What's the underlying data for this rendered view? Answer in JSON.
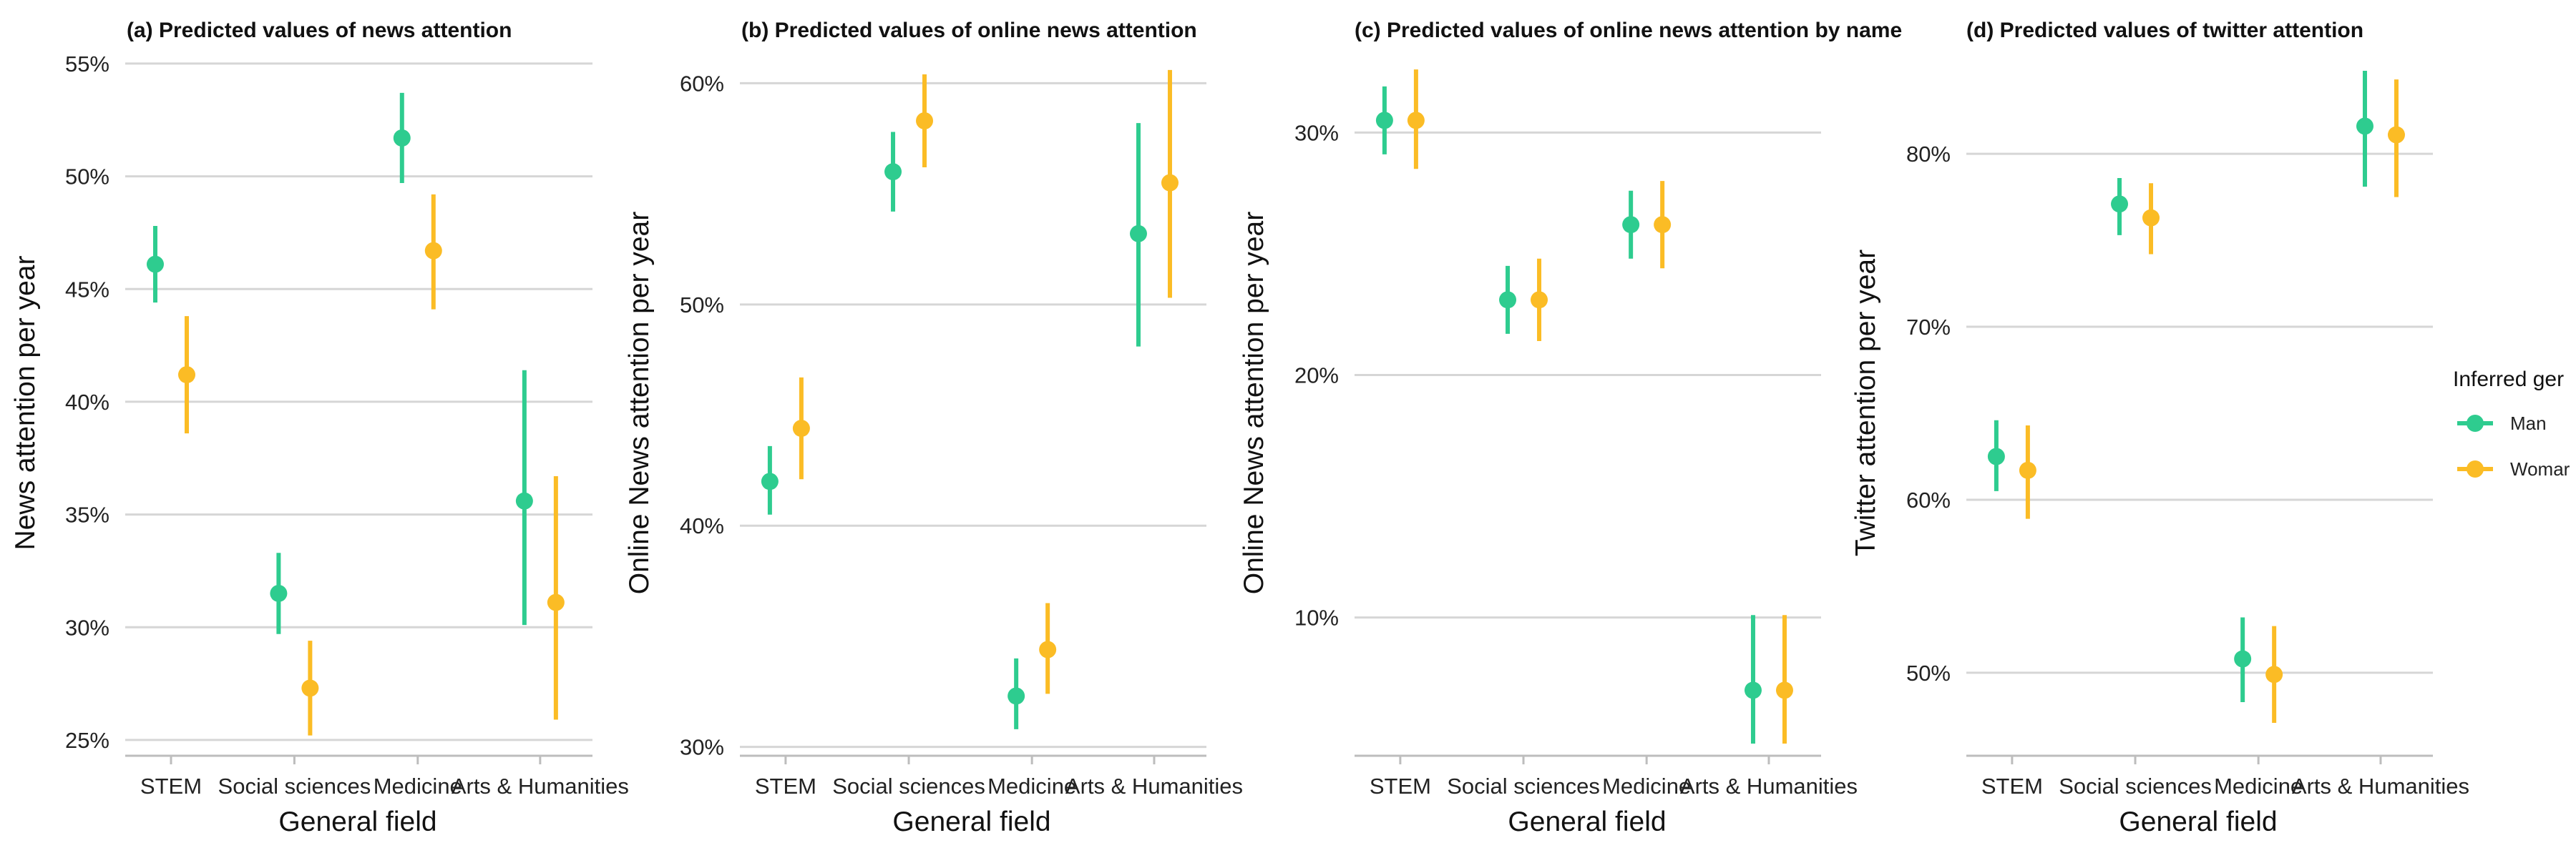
{
  "legend": {
    "title": "Inferred ger",
    "entries": [
      {
        "label": "Man",
        "color": "#2ecc8f"
      },
      {
        "label": "Womar",
        "color": "#fbbc25"
      }
    ]
  },
  "chart_data": [
    {
      "type": "pointrange",
      "title": "(a) Predicted values of news attention",
      "xlabel": "General field",
      "ylabel": "News attention per year",
      "categories": [
        "STEM",
        "Social sciences",
        "Medicine",
        "Arts & Humanities"
      ],
      "ylim": [
        24.3,
        55.6
      ],
      "yticks": [
        25,
        30,
        35,
        40,
        45,
        50,
        55
      ],
      "ytick_labels": [
        "25%",
        "30%",
        "35%",
        "40%",
        "45%",
        "50%",
        "55%"
      ],
      "series": [
        {
          "name": "Man",
          "color": "#2ecc8f",
          "values": [
            46.1,
            31.5,
            51.7,
            35.6
          ],
          "lower": [
            44.4,
            29.7,
            49.7,
            30.1
          ],
          "upper": [
            47.8,
            33.3,
            53.7,
            41.4
          ]
        },
        {
          "name": "Woman",
          "color": "#fbbc25",
          "values": [
            41.2,
            27.3,
            46.7,
            31.1
          ],
          "lower": [
            38.6,
            25.2,
            44.1,
            25.9
          ],
          "upper": [
            43.8,
            29.4,
            49.2,
            36.7
          ]
        }
      ]
    },
    {
      "type": "pointrange",
      "title": "(b) Predicted values of online news attention",
      "xlabel": "General field",
      "ylabel": "Online News attention per year",
      "categories": [
        "STEM",
        "Social sciences",
        "Medicine",
        "Arts & Humanities"
      ],
      "ylim": [
        29.6,
        61.5
      ],
      "yticks": [
        30,
        40,
        50,
        60
      ],
      "ytick_labels": [
        "30%",
        "40%",
        "50%",
        "60%"
      ],
      "series": [
        {
          "name": "Man",
          "color": "#2ecc8f",
          "values": [
            42.0,
            56.0,
            32.3,
            53.2
          ],
          "lower": [
            40.5,
            54.2,
            30.8,
            48.1
          ],
          "upper": [
            43.6,
            57.8,
            34.0,
            58.2
          ]
        },
        {
          "name": "Woman",
          "color": "#fbbc25",
          "values": [
            44.4,
            58.3,
            34.4,
            55.5
          ],
          "lower": [
            42.1,
            56.2,
            32.4,
            50.3
          ],
          "upper": [
            46.7,
            60.4,
            36.5,
            60.6
          ]
        }
      ]
    },
    {
      "type": "pointrange",
      "title": "(c) Predicted values of online news attention by name",
      "xlabel": "General field",
      "ylabel": "Online News attention per year",
      "categories": [
        "STEM",
        "Social sciences",
        "Medicine",
        "Arts & Humanities"
      ],
      "ylim": [
        4.3,
        33.4
      ],
      "yticks": [
        10,
        20,
        30
      ],
      "ytick_labels": [
        "10%",
        "20%",
        "30%"
      ],
      "series": [
        {
          "name": "Man",
          "color": "#2ecc8f",
          "values": [
            30.5,
            23.1,
            26.2,
            7.0
          ],
          "lower": [
            29.1,
            21.7,
            24.8,
            4.8
          ],
          "upper": [
            31.9,
            24.5,
            27.6,
            10.1
          ]
        },
        {
          "name": "Woman",
          "color": "#fbbc25",
          "values": [
            30.5,
            23.1,
            26.2,
            7.0
          ],
          "lower": [
            28.5,
            21.4,
            24.4,
            4.8
          ],
          "upper": [
            32.6,
            24.8,
            28.0,
            10.1
          ]
        }
      ]
    },
    {
      "type": "pointrange",
      "title": "(d) Predicted values of twitter attention",
      "xlabel": "General field",
      "ylabel": "Twitter attention per year",
      "categories": [
        "STEM",
        "Social sciences",
        "Medicine",
        "Arts & Humanities"
      ],
      "ylim": [
        45.2,
        86.0
      ],
      "yticks": [
        50,
        60,
        70,
        80
      ],
      "ytick_labels": [
        "50%",
        "60%",
        "70%",
        "80%"
      ],
      "series": [
        {
          "name": "Man",
          "color": "#2ecc8f",
          "values": [
            62.5,
            77.1,
            50.8,
            81.6
          ],
          "lower": [
            60.5,
            75.3,
            48.3,
            78.1
          ],
          "upper": [
            64.6,
            78.6,
            53.2,
            84.8
          ]
        },
        {
          "name": "Woman",
          "color": "#fbbc25",
          "values": [
            61.7,
            76.3,
            49.9,
            81.1
          ],
          "lower": [
            58.9,
            74.2,
            47.1,
            77.5
          ],
          "upper": [
            64.3,
            78.3,
            52.7,
            84.3
          ]
        }
      ]
    }
  ]
}
